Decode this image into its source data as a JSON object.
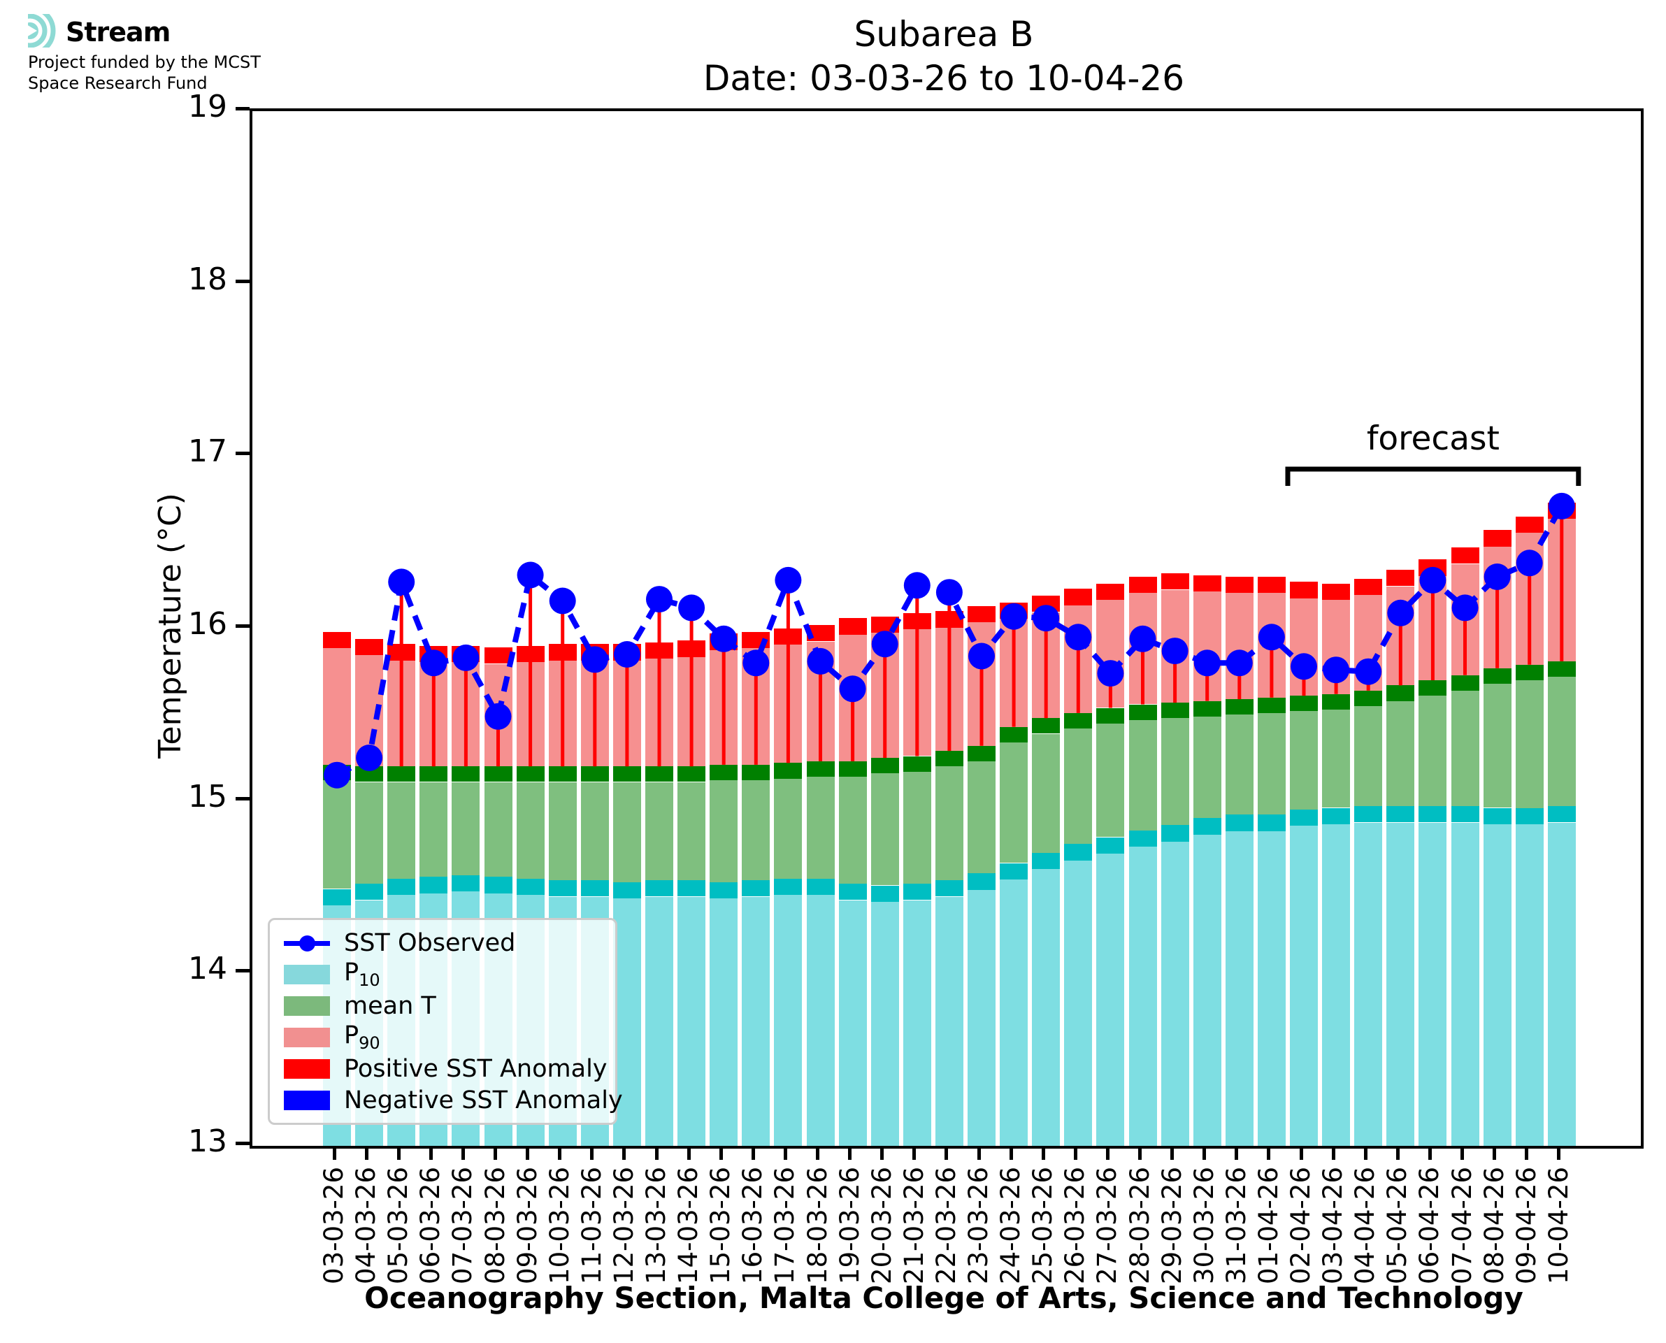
{
  "branding": {
    "logo_text": "Stream",
    "funding_line1": "Project funded by the MCST",
    "funding_line2": "Space Research Fund",
    "logo_color": "#8edad4"
  },
  "title": {
    "line1": "Subarea B",
    "line2": "Date: 03-03-26 to 10-04-26"
  },
  "axes": {
    "y_label": "Temperature (°C)",
    "y_ticks": [
      13,
      14,
      15,
      16,
      17,
      18,
      19
    ],
    "x_label": "Oceanography Section, Malta College of Arts, Science and Technology"
  },
  "forecast": {
    "label": "forecast",
    "start_date": "02-04-26",
    "end_date": "10-04-26"
  },
  "legend": {
    "items": [
      {
        "label": "SST Observed"
      },
      {
        "pre": "P",
        "sub": "10"
      },
      {
        "label": "mean T"
      },
      {
        "pre": "P",
        "sub": "90"
      },
      {
        "label": "Positive SST Anomaly"
      },
      {
        "label": "Negative SST Anomaly"
      }
    ]
  },
  "colors": {
    "p10_fill": "#7edee2",
    "p10_band": "#00bec2",
    "mean_fill": "#7fbf7f",
    "mean_band": "#008000",
    "p90_fill": "#f69090",
    "p90_band": "#ff0000",
    "positive_anomaly": "#ff0000",
    "negative_anomaly": "#0000ff",
    "observed_line": "#0000ff",
    "legend_p10": "#86d8dc",
    "legend_mean": "#7cb97c",
    "legend_p90": "#f19090"
  },
  "chart_data": {
    "type": "bar",
    "title": "Subarea B",
    "subtitle": "Date: 03-03-26 to 10-04-26",
    "xlabel": "Oceanography Section, Malta College of Arts, Science and Technology",
    "ylabel": "Temperature (°C)",
    "ylim": [
      13,
      19
    ],
    "grid": false,
    "legend_position": "lower left",
    "forecast_span": [
      "02-04-26",
      "10-04-26"
    ],
    "categories": [
      "03-03-26",
      "04-03-26",
      "05-03-26",
      "06-03-26",
      "07-03-26",
      "08-03-26",
      "09-03-26",
      "10-03-26",
      "11-03-26",
      "12-03-26",
      "13-03-26",
      "14-03-26",
      "15-03-26",
      "16-03-26",
      "17-03-26",
      "18-03-26",
      "19-03-26",
      "20-03-26",
      "21-03-26",
      "22-03-26",
      "23-03-26",
      "24-03-26",
      "25-03-26",
      "26-03-26",
      "27-03-26",
      "28-03-26",
      "29-03-26",
      "30-03-26",
      "31-03-26",
      "01-04-26",
      "02-04-26",
      "03-04-26",
      "04-04-26",
      "05-04-26",
      "06-04-26",
      "07-04-26",
      "08-04-26",
      "09-04-26",
      "10-04-26"
    ],
    "series": [
      {
        "name": "SST Observed",
        "type": "line",
        "values": [
          15.15,
          15.25,
          16.27,
          15.8,
          15.83,
          15.49,
          16.31,
          16.16,
          15.82,
          15.85,
          16.17,
          16.12,
          15.94,
          15.8,
          16.28,
          15.81,
          15.65,
          15.91,
          16.25,
          16.21,
          15.84,
          16.07,
          16.06,
          15.95,
          15.74,
          15.94,
          15.87,
          15.8,
          15.8,
          15.95,
          15.78,
          15.76,
          15.75,
          16.09,
          16.28,
          16.12,
          16.3,
          16.38,
          16.71
        ]
      },
      {
        "name": "P10",
        "type": "bar",
        "values": [
          14.49,
          14.52,
          14.55,
          14.56,
          14.57,
          14.56,
          14.55,
          14.54,
          14.54,
          14.53,
          14.54,
          14.54,
          14.53,
          14.54,
          14.55,
          14.55,
          14.52,
          14.51,
          14.52,
          14.54,
          14.58,
          14.64,
          14.7,
          14.75,
          14.79,
          14.83,
          14.86,
          14.9,
          14.92,
          14.92,
          14.95,
          14.96,
          14.97,
          14.97,
          14.97,
          14.97,
          14.96,
          14.96,
          14.97
        ]
      },
      {
        "name": "mean T",
        "type": "bar",
        "values": [
          15.21,
          15.2,
          15.2,
          15.2,
          15.2,
          15.2,
          15.2,
          15.2,
          15.2,
          15.2,
          15.2,
          15.2,
          15.21,
          15.21,
          15.22,
          15.23,
          15.23,
          15.25,
          15.26,
          15.29,
          15.32,
          15.43,
          15.48,
          15.51,
          15.54,
          15.56,
          15.57,
          15.58,
          15.59,
          15.6,
          15.61,
          15.62,
          15.64,
          15.67,
          15.7,
          15.73,
          15.77,
          15.79,
          15.81
        ]
      },
      {
        "name": "P90",
        "type": "bar",
        "values": [
          15.98,
          15.94,
          15.91,
          15.9,
          15.9,
          15.89,
          15.9,
          15.91,
          15.91,
          15.91,
          15.92,
          15.93,
          15.97,
          15.98,
          16.0,
          16.02,
          16.06,
          16.07,
          16.09,
          16.1,
          16.13,
          16.15,
          16.19,
          16.23,
          16.26,
          16.3,
          16.32,
          16.31,
          16.3,
          16.3,
          16.27,
          16.26,
          16.29,
          16.34,
          16.4,
          16.47,
          16.57,
          16.65,
          16.73
        ]
      }
    ]
  }
}
